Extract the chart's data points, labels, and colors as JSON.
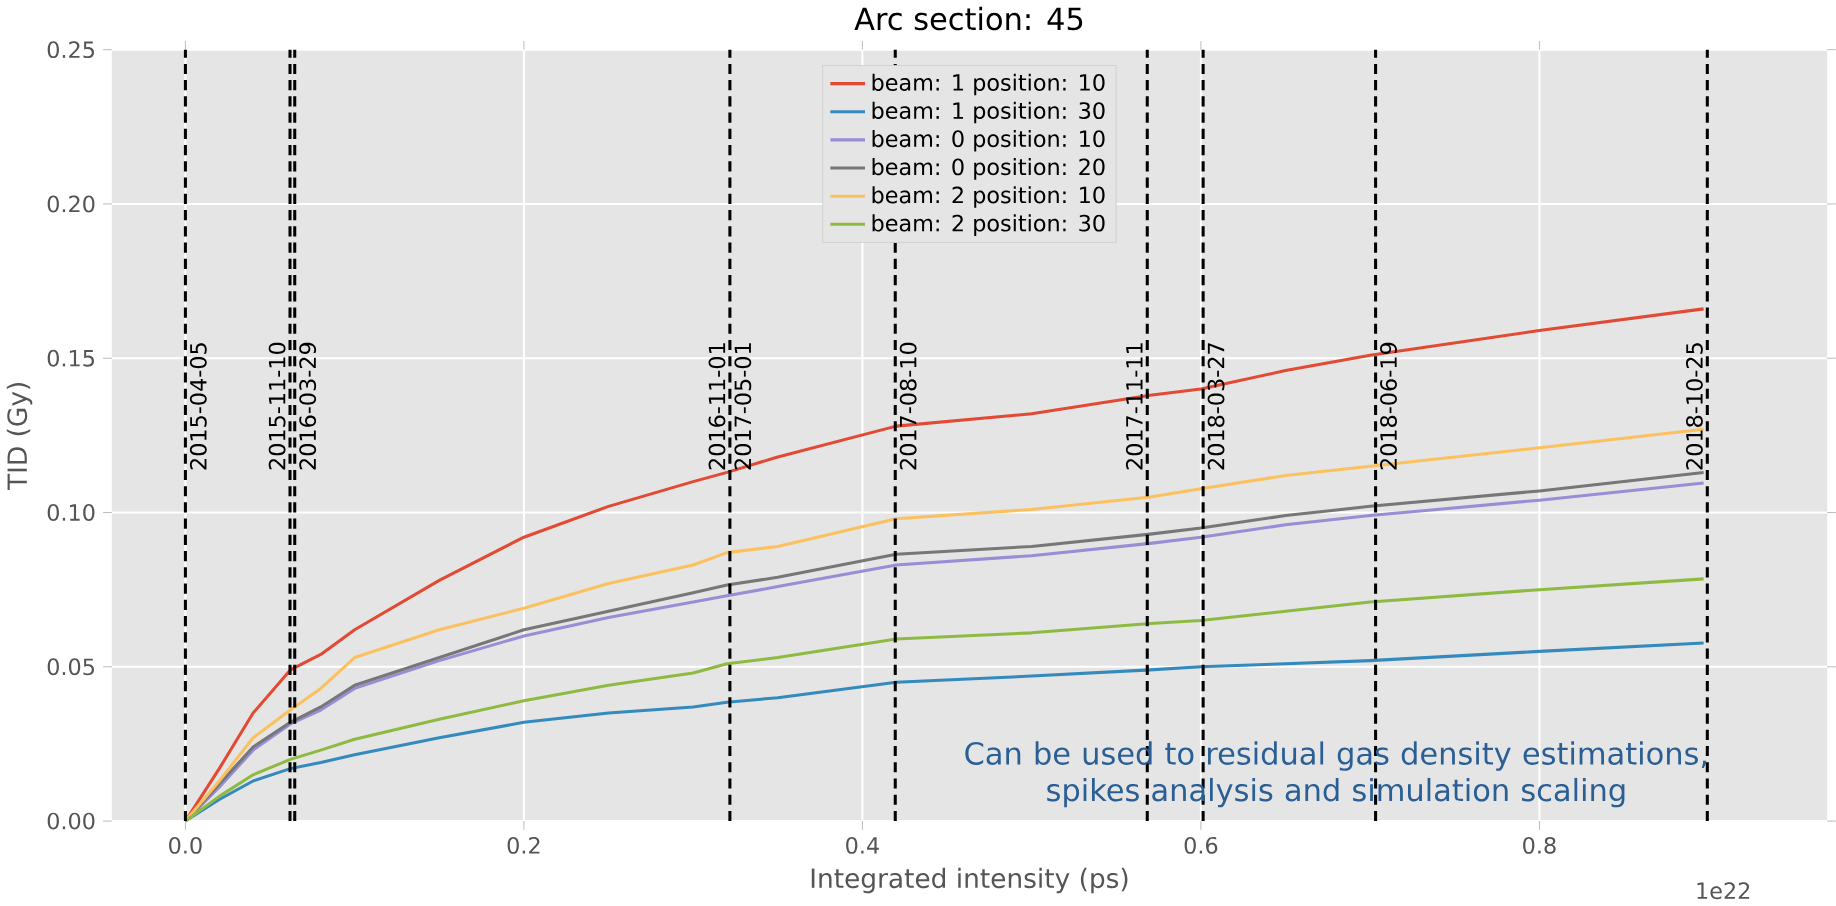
{
  "chart_data": {
    "type": "line",
    "title": "Arc section: 45",
    "xlabel": "Integrated intensity (ps)",
    "ylabel": "TID (Gy)",
    "xlim": [
      -0.0435,
      0.97
    ],
    "ylim": [
      0,
      0.25
    ],
    "xticks": [
      {
        "value": 0,
        "label": "0.0"
      },
      {
        "value": 0.2,
        "label": "0.2"
      },
      {
        "value": 0.4,
        "label": "0.4"
      },
      {
        "value": 0.6,
        "label": "0.6"
      },
      {
        "value": 0.8,
        "label": "0.8"
      }
    ],
    "yticks": [
      {
        "value": 0,
        "label": "0.00"
      },
      {
        "value": 0.05,
        "label": "0.05"
      },
      {
        "value": 0.1,
        "label": "0.10"
      },
      {
        "value": 0.15,
        "label": "0.15"
      },
      {
        "value": 0.2,
        "label": "0.20"
      },
      {
        "value": 0.25,
        "label": "0.25"
      }
    ],
    "grid": true,
    "legend": "top",
    "line_style": "solid",
    "x": [
      0,
      0.02,
      0.04,
      0.062,
      0.08,
      0.1,
      0.15,
      0.2,
      0.25,
      0.3,
      0.32,
      0.35,
      0.42,
      0.5,
      0.57,
      0.6,
      0.65,
      0.7,
      0.8,
      0.897
    ],
    "series": [
      {
        "name": "beam: 1 position: 10",
        "color": "#e24a33",
        "values": [
          0,
          0.017,
          0.035,
          0.049,
          0.054,
          0.062,
          0.078,
          0.092,
          0.102,
          0.11,
          0.113,
          0.118,
          0.128,
          0.132,
          0.138,
          0.14,
          0.146,
          0.151,
          0.159,
          0.166
        ]
      },
      {
        "name": "beam: 1 position: 30",
        "color": "#348abd",
        "values": [
          0,
          0.007,
          0.013,
          0.017,
          0.019,
          0.0215,
          0.027,
          0.032,
          0.035,
          0.037,
          0.0385,
          0.04,
          0.045,
          0.047,
          0.049,
          0.05,
          0.051,
          0.052,
          0.055,
          0.0577
        ]
      },
      {
        "name": "beam: 0 position: 10",
        "color": "#988ed5",
        "values": [
          0,
          0.011,
          0.023,
          0.0315,
          0.036,
          0.043,
          0.052,
          0.06,
          0.066,
          0.071,
          0.073,
          0.076,
          0.083,
          0.086,
          0.09,
          0.092,
          0.096,
          0.099,
          0.104,
          0.1096
        ]
      },
      {
        "name": "beam: 0 position: 20",
        "color": "#777777",
        "values": [
          0,
          0.012,
          0.024,
          0.032,
          0.037,
          0.044,
          0.053,
          0.062,
          0.068,
          0.074,
          0.0765,
          0.079,
          0.0865,
          0.089,
          0.093,
          0.095,
          0.099,
          0.102,
          0.107,
          0.113
        ]
      },
      {
        "name": "beam: 2 position: 10",
        "color": "#fbc15e",
        "values": [
          0,
          0.013,
          0.027,
          0.036,
          0.043,
          0.053,
          0.062,
          0.069,
          0.077,
          0.083,
          0.087,
          0.089,
          0.098,
          0.101,
          0.105,
          0.1077,
          0.112,
          0.115,
          0.121,
          0.127
        ]
      },
      {
        "name": "beam: 2 position: 30",
        "color": "#8eba42",
        "values": [
          0,
          0.008,
          0.015,
          0.02,
          0.023,
          0.0265,
          0.033,
          0.039,
          0.044,
          0.048,
          0.051,
          0.053,
          0.059,
          0.061,
          0.064,
          0.065,
          0.068,
          0.071,
          0.075,
          0.0785
        ]
      }
    ],
    "ref_lines": [
      {
        "axis": "x",
        "value": 0.0,
        "color": "#000000",
        "line_style": "dashed"
      },
      {
        "axis": "x",
        "value": 0.0618,
        "color": "#000000",
        "line_style": "dashed"
      },
      {
        "axis": "x",
        "value": 0.0646,
        "color": "#000000",
        "line_style": "dashed"
      },
      {
        "axis": "x",
        "value": 0.3217,
        "color": "#000000",
        "line_style": "dashed"
      },
      {
        "axis": "x",
        "value": 0.4194,
        "color": "#000000",
        "line_style": "dashed"
      },
      {
        "axis": "x",
        "value": 0.5683,
        "color": "#000000",
        "line_style": "dashed"
      },
      {
        "axis": "x",
        "value": 0.6013,
        "color": "#000000",
        "line_style": "dashed"
      },
      {
        "axis": "x",
        "value": 0.7032,
        "color": "#000000",
        "line_style": "dashed"
      },
      {
        "axis": "x",
        "value": 0.8992,
        "color": "#000000",
        "line_style": "dashed"
      }
    ],
    "annotations": [
      "Can be used to residual gas density estimations, spikes analysis and simulation scaling",
      "1e22",
      {
        "text": "2015-04-05",
        "x": 0.0,
        "y": 0.112
      },
      {
        "text": "2015-11-10",
        "x": 0.0618,
        "y": 0.112
      },
      {
        "text": "2016-03-29",
        "x": 0.0646,
        "y": 0.112
      },
      {
        "text": "2016-11-01",
        "x": 0.3217,
        "y": 0.112
      },
      {
        "text": "2017-05-01",
        "x": 0.3217,
        "y": 0.112
      },
      {
        "text": "2017-08-10",
        "x": 0.4194,
        "y": 0.112
      },
      {
        "text": "2017-11-11",
        "x": 0.5683,
        "y": 0.112
      },
      {
        "text": "2018-03-27",
        "x": 0.6013,
        "y": 0.112
      },
      {
        "text": "2018-06-19",
        "x": 0.7032,
        "y": 0.112
      },
      {
        "text": "2018-10-25",
        "x": 0.8992,
        "y": 0.112
      }
    ]
  }
}
